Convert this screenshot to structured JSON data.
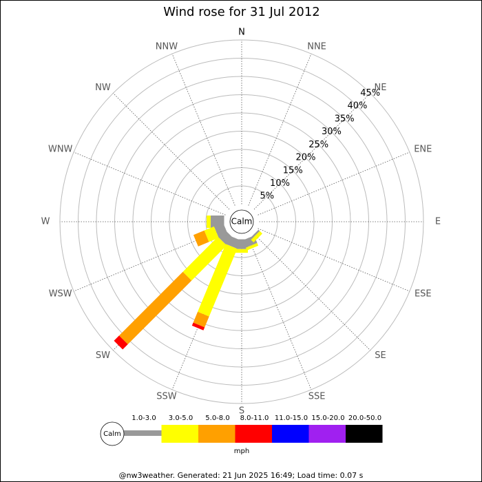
{
  "chart_data": {
    "type": "windrose",
    "title": "Wind rose for 31 Jul 2012",
    "categories": [
      "N",
      "NNE",
      "NE",
      "ENE",
      "E",
      "ESE",
      "SE",
      "SSE",
      "S",
      "SSW",
      "SW",
      "WSW",
      "W",
      "WNW",
      "NW",
      "NNW"
    ],
    "calm_label": "Calm",
    "unit_label": "mph",
    "footer": "@nw3weather. Generated: 21 Jun 2025 16:49; Load time: 0.07 s",
    "rlim": [
      0,
      45
    ],
    "rticks": [
      {
        "value": 5,
        "label": "5%"
      },
      {
        "value": 10,
        "label": "10%"
      },
      {
        "value": 15,
        "label": "15%"
      },
      {
        "value": 20,
        "label": "20%"
      },
      {
        "value": 25,
        "label": "25%"
      },
      {
        "value": 30,
        "label": "30%"
      },
      {
        "value": 35,
        "label": "35%"
      },
      {
        "value": 40,
        "label": "40%"
      },
      {
        "value": 45,
        "label": "45%"
      }
    ],
    "grid": true,
    "series": [
      {
        "name": "1.0-3.0",
        "color": "#999999",
        "values": [
          0,
          0,
          0,
          0,
          0,
          0,
          0.5,
          2.2,
          2.7,
          2.5,
          2.7,
          2.7,
          3.7,
          0,
          0,
          0
        ]
      },
      {
        "name": "3.0-5.0",
        "color": "#ffff00",
        "values": [
          0,
          0,
          0,
          0,
          0,
          0,
          1.0,
          0.8,
          1.0,
          20.1,
          13.6,
          2.9,
          1.1,
          0,
          0,
          0
        ]
      },
      {
        "name": "5.0-8.0",
        "color": "#ffa000",
        "values": [
          0,
          0,
          0,
          0,
          0,
          0,
          0,
          0,
          0,
          3.2,
          24.7,
          3.2,
          0,
          0,
          0,
          0
        ]
      },
      {
        "name": "8.0-11.0",
        "color": "#ff0000",
        "values": [
          0,
          0,
          0,
          0,
          0,
          0,
          0,
          0,
          0,
          0.9,
          2.0,
          0,
          0,
          0,
          0,
          0
        ]
      },
      {
        "name": "11.0-15.0",
        "color": "#0000ff",
        "values": [
          0,
          0,
          0,
          0,
          0,
          0,
          0,
          0,
          0,
          0,
          0,
          0,
          0,
          0,
          0,
          0
        ]
      },
      {
        "name": "15.0-20.0",
        "color": "#a020f0",
        "values": [
          0,
          0,
          0,
          0,
          0,
          0,
          0,
          0,
          0,
          0,
          0,
          0,
          0,
          0,
          0,
          0
        ]
      },
      {
        "name": "20.0-50.0",
        "color": "#000000",
        "values": [
          0,
          0,
          0,
          0,
          0,
          0,
          0,
          0,
          0,
          0,
          0,
          0,
          0,
          0,
          0,
          0
        ]
      }
    ]
  }
}
